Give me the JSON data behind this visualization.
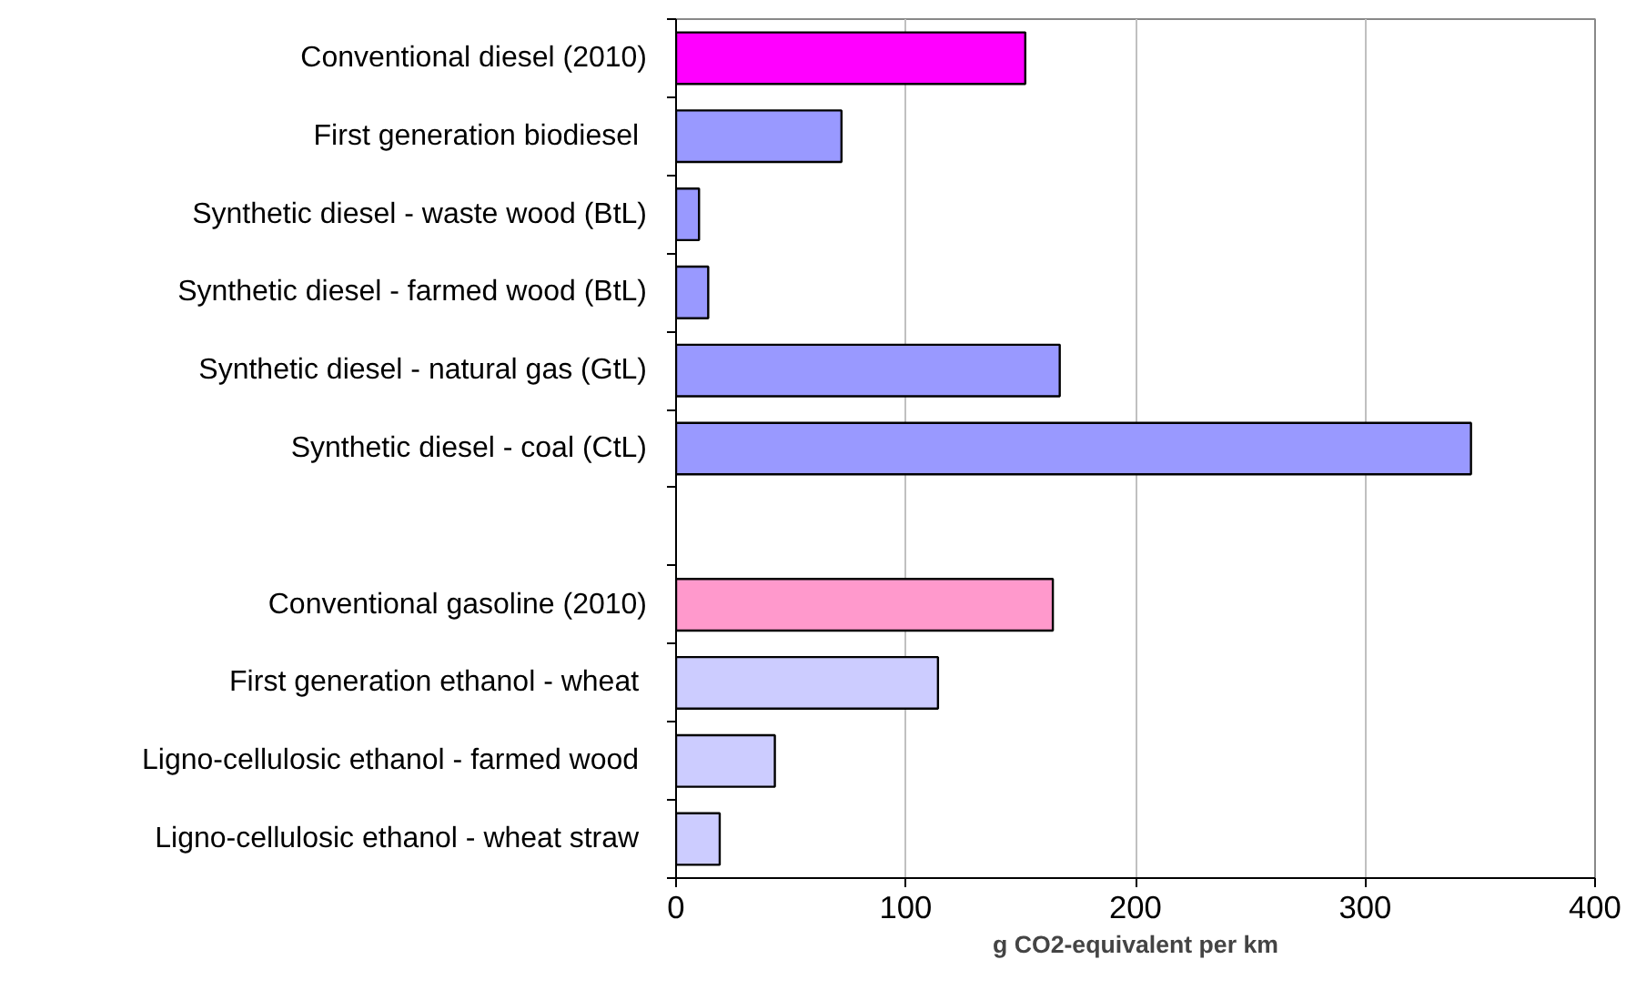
{
  "chart_data": {
    "type": "bar",
    "orientation": "horizontal",
    "xlabel": "g CO2-equivalent per km",
    "categories": [
      "Conventional diesel (2010)",
      "First generation biodiesel ",
      "Synthetic diesel - waste wood (BtL)",
      "Synthetic diesel - farmed wood (BtL)",
      "Synthetic diesel - natural gas (GtL)",
      "Synthetic diesel - coal (CtL)",
      null,
      "Conventional gasoline (2010)",
      "First generation ethanol - wheat ",
      "Ligno-cellulosic ethanol -  farmed wood",
      "Ligno-cellulosic ethanol -  wheat straw"
    ],
    "values": [
      152,
      72,
      10,
      14,
      167,
      346,
      null,
      164,
      114,
      43,
      19
    ],
    "colors": [
      "#ff00ff",
      "#9999ff",
      "#9999ff",
      "#9999ff",
      "#9999ff",
      "#9999ff",
      "#9999ff",
      "#ff99cc",
      "#ccccff",
      "#ccccff",
      "#ccccff"
    ],
    "xlim": [
      0,
      400
    ],
    "xticks": [
      0,
      100,
      200,
      300,
      400
    ],
    "grid": "x"
  }
}
